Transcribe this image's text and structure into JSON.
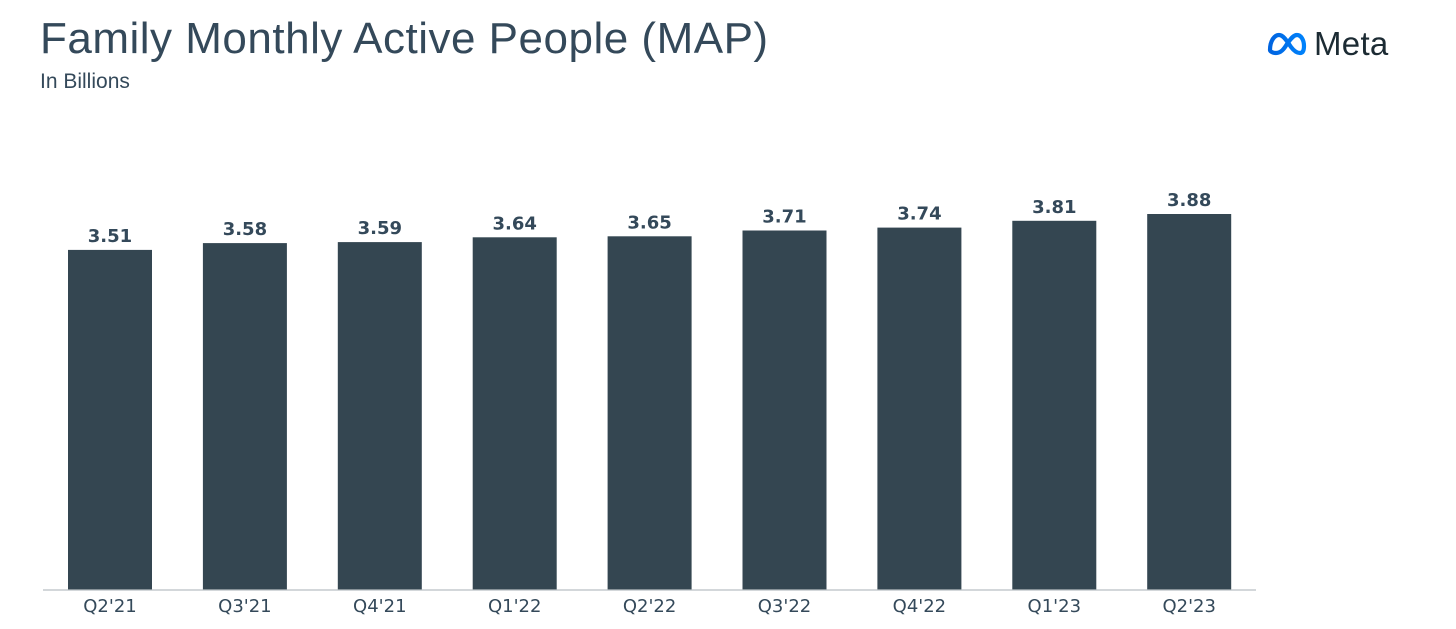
{
  "header": {
    "title": "Family Monthly Active People (MAP)",
    "subtitle": "In Billions"
  },
  "logo": {
    "wordmark": "Meta",
    "icon": "meta-infinity-icon",
    "color": "#0668E1"
  },
  "colors": {
    "bar": "#344651",
    "text": "#34495a"
  },
  "chart_data": {
    "type": "bar",
    "title": "Family Monthly Active People (MAP)",
    "subtitle": "In Billions",
    "xlabel": "",
    "ylabel": "",
    "categories": [
      "Q2'21",
      "Q3'21",
      "Q4'21",
      "Q1'22",
      "Q2'22",
      "Q3'22",
      "Q4'22",
      "Q1'23",
      "Q2'23"
    ],
    "values": [
      3.51,
      3.58,
      3.59,
      3.64,
      3.65,
      3.71,
      3.74,
      3.81,
      3.88
    ],
    "value_labels": [
      "3.51",
      "3.58",
      "3.59",
      "3.64",
      "3.65",
      "3.71",
      "3.74",
      "3.81",
      "3.88"
    ],
    "ylim": [
      0,
      3.88
    ],
    "grid": false,
    "legend": "none"
  }
}
